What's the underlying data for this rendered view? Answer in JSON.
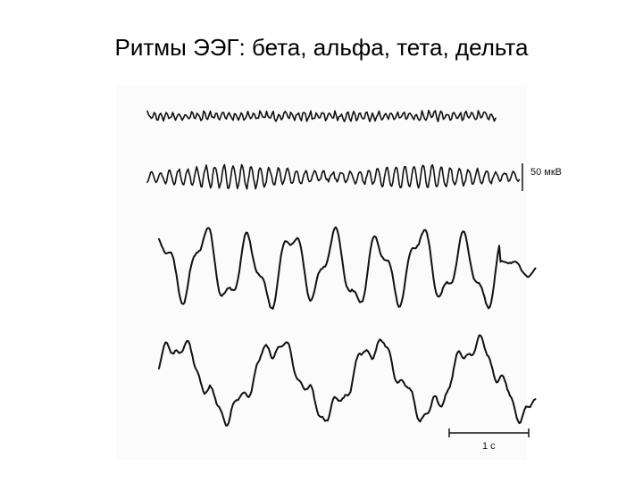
{
  "header": {
    "title": "Ритмы ЭЭГ: бета, альфа, тета, дельта"
  },
  "figure": {
    "amplitude_scale": "50 мкВ",
    "time_scale": "1 с"
  }
}
